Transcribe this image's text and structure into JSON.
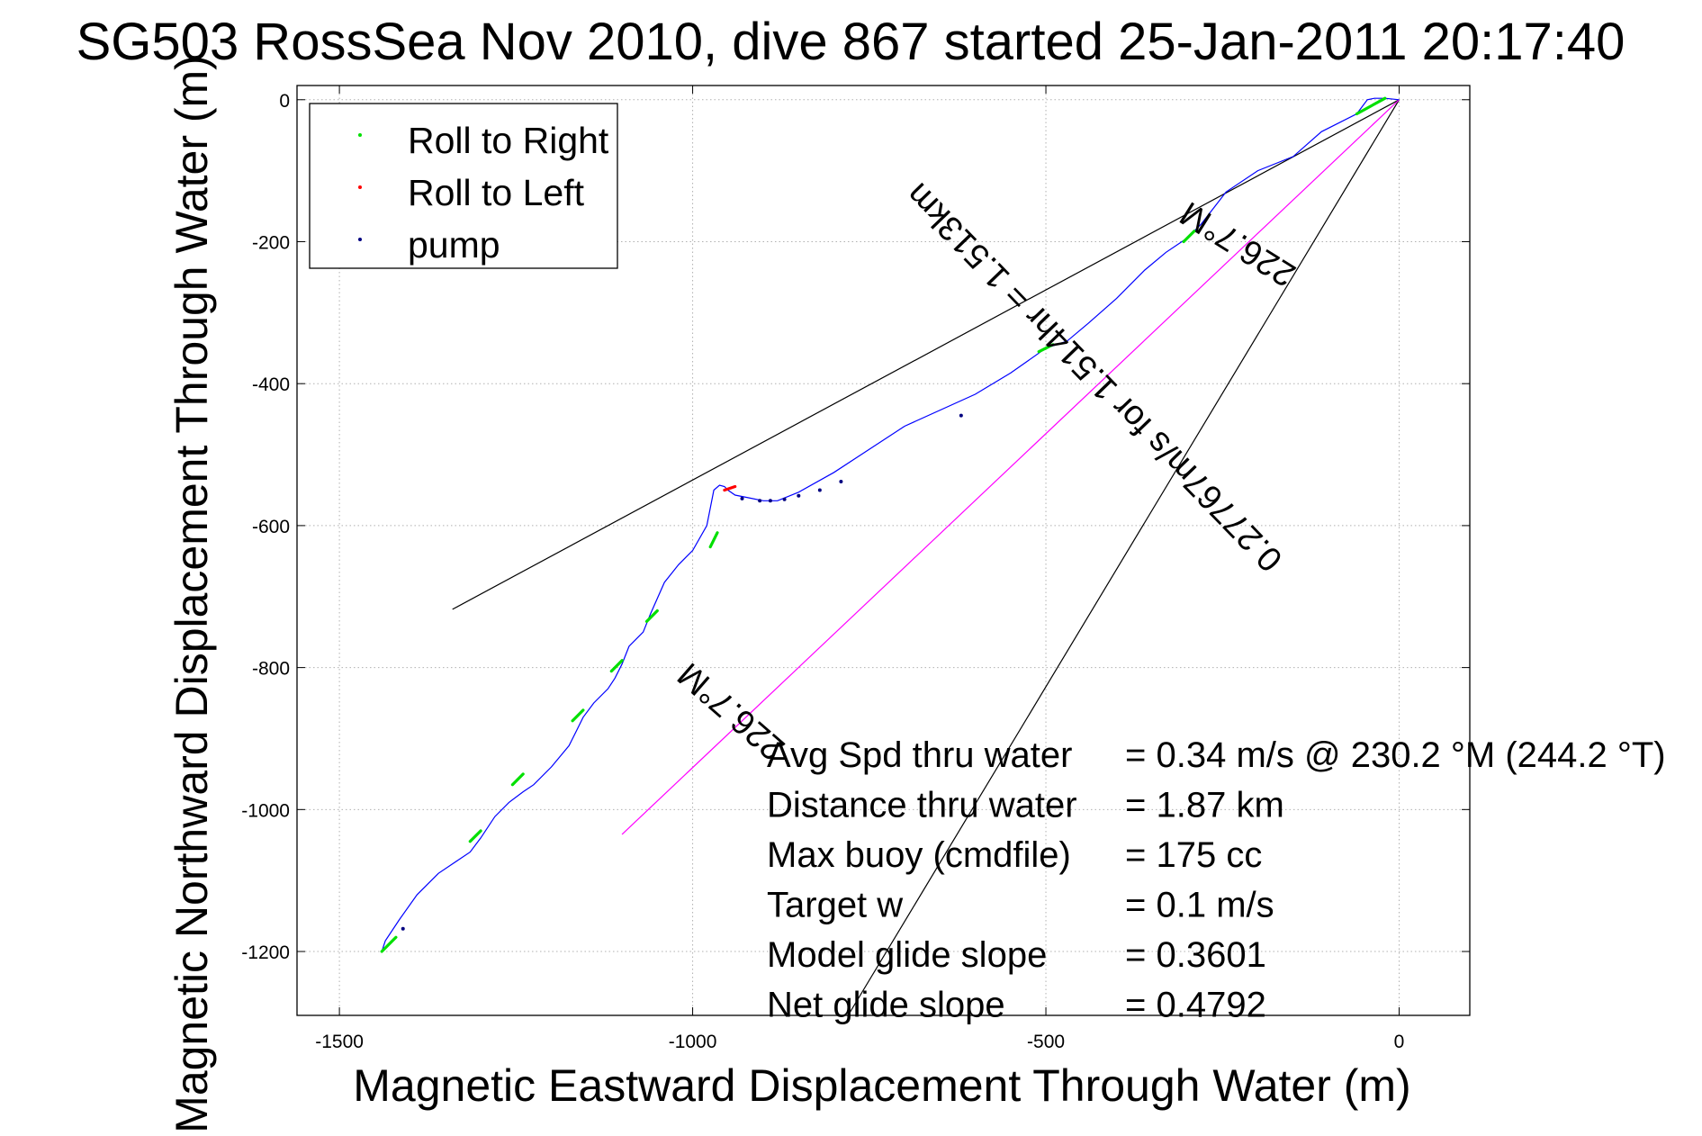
{
  "chart_data": {
    "type": "line",
    "title": "SG503 RossSea Nov 2010, dive 867 started 25-Jan-2011 20:17:40",
    "xlabel": "Magnetic Eastward Displacement Through Water (m)",
    "ylabel": "Magnetic Northward Displacement Through Water (m)",
    "xlim": [
      -1560,
      100
    ],
    "ylim": [
      -1290,
      20
    ],
    "xticks": [
      -1500,
      -1000,
      -500,
      0
    ],
    "yticks": [
      0,
      -200,
      -400,
      -600,
      -800,
      -1000,
      -1200
    ],
    "grid": true,
    "legend_position": "top-left",
    "legend": [
      {
        "label": "Roll to Right",
        "color": "#00e000"
      },
      {
        "label": "Roll to Left",
        "color": "#ff0000"
      },
      {
        "label": "pump",
        "color": "#000080"
      }
    ],
    "track": {
      "name": "",
      "color": "#0000ff",
      "x": [
        0,
        -20,
        -35,
        -45,
        -60,
        -110,
        -150,
        -200,
        -245,
        -280,
        -300,
        -330,
        -360,
        -400,
        -440,
        -470,
        -500,
        -550,
        -600,
        -700,
        -800,
        -850,
        -880,
        -900,
        -920,
        -940,
        -950,
        -955,
        -962,
        -970,
        -975,
        -980,
        -1000,
        -1020,
        -1040,
        -1060,
        -1070,
        -1090,
        -1100,
        -1110,
        -1120,
        -1140,
        -1155,
        -1165,
        -1175,
        -1200,
        -1225,
        -1240,
        -1260,
        -1280,
        -1300,
        -1315,
        -1330,
        -1360,
        -1390,
        -1415,
        -1435,
        -1440
      ],
      "y": [
        0,
        2,
        2,
        0,
        -20,
        -45,
        -80,
        -100,
        -130,
        -175,
        -195,
        -215,
        -240,
        -280,
        -315,
        -340,
        -350,
        -385,
        -415,
        -460,
        -525,
        -553,
        -565,
        -565,
        -561,
        -557,
        -550,
        -545,
        -543,
        -550,
        -575,
        -600,
        -635,
        -655,
        -680,
        -725,
        -750,
        -770,
        -795,
        -815,
        -830,
        -850,
        -870,
        -890,
        -910,
        -940,
        -965,
        -975,
        -990,
        -1010,
        -1040,
        -1060,
        -1070,
        -1090,
        -1120,
        -1155,
        -1185,
        -1200
      ],
      "roll_right_segments": [
        {
          "x": [
            -20,
            -60
          ],
          "y": [
            2,
            -20
          ]
        },
        {
          "x": [
            -290,
            -305
          ],
          "y": [
            -185,
            -200
          ]
        },
        {
          "x": [
            -490,
            -510
          ],
          "y": [
            -345,
            -355
          ]
        },
        {
          "x": [
            -965,
            -975
          ],
          "y": [
            -610,
            -630
          ]
        },
        {
          "x": [
            -1050,
            -1065
          ],
          "y": [
            -720,
            -735
          ]
        },
        {
          "x": [
            -1100,
            -1115
          ],
          "y": [
            -790,
            -805
          ]
        },
        {
          "x": [
            -1155,
            -1170
          ],
          "y": [
            -860,
            -875
          ]
        },
        {
          "x": [
            -1240,
            -1255
          ],
          "y": [
            -950,
            -965
          ]
        },
        {
          "x": [
            -1300,
            -1315
          ],
          "y": [
            -1030,
            -1045
          ]
        },
        {
          "x": [
            -1420,
            -1440
          ],
          "y": [
            -1180,
            -1200
          ]
        }
      ],
      "roll_left_segments": [
        {
          "x": [
            -940,
            -955
          ],
          "y": [
            -545,
            -550
          ]
        }
      ],
      "pump_points": {
        "x": [
          -620,
          -790,
          -820,
          -850,
          -870,
          -890,
          -905,
          -930,
          -1410
        ],
        "y": [
          -445,
          -538,
          -550,
          -558,
          -563,
          -565,
          -565,
          -562,
          -1168
        ]
      }
    },
    "reference_lines": [
      {
        "label": "heading-line-upper",
        "color": "#000000",
        "x": [
          0,
          -1340
        ],
        "y": [
          0,
          -718
        ]
      },
      {
        "label": "heading-line-lower",
        "color": "#000000",
        "x": [
          0,
          -780
        ],
        "y": [
          0,
          -1290
        ]
      },
      {
        "label": "net-displacement-line",
        "color": "#ff00ff",
        "x": [
          0,
          -1100
        ],
        "y": [
          0,
          -1035
        ]
      }
    ],
    "annotations": [
      {
        "text": "226.7°M",
        "x": -220,
        "y": -190,
        "angle": 212,
        "size": 38
      },
      {
        "text": "0.27767m/s for 1.514hr = 1.513km",
        "x": -420,
        "y": -380,
        "angle": 226,
        "size": 38
      },
      {
        "text": "226.7°M",
        "x": -935,
        "y": -850,
        "angle": 221,
        "size": 38
      }
    ],
    "stats": [
      {
        "label": "Avg Spd thru water",
        "value": "=  0.34 m/s @ 230.2 °M (244.2 °T)"
      },
      {
        "label": "Distance thru water",
        "value": "=  1.87 km"
      },
      {
        "label": "Max buoy (cmdfile)",
        "value": "= 175 cc"
      },
      {
        "label": "Target w",
        "value": "= 0.1 m/s"
      },
      {
        "label": "Model glide slope",
        "value": "= 0.3601"
      },
      {
        "label": "Net glide slope",
        "value": "= 0.4792"
      }
    ]
  }
}
